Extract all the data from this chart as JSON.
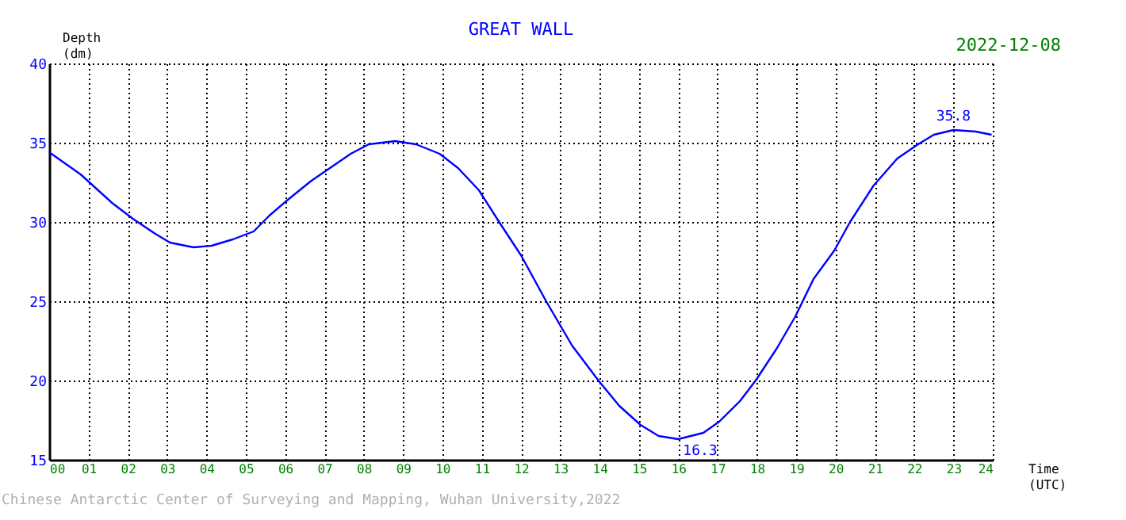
{
  "chart_data": {
    "type": "line",
    "title": "GREAT WALL",
    "ylabel": "Depth (dm)",
    "xlabel": "Time (UTC)",
    "annotations": [
      "2022-12-08",
      "Chinese Antarctic Center of Surveying and Mapping, Wuhan University,2022",
      {
        "text": "35.8",
        "x": 23.0,
        "y": 35.8
      },
      {
        "text": "16.3",
        "x": 16.0,
        "y": 16.3
      }
    ],
    "x": [
      0,
      0.8,
      1.6,
      2.13,
      2.67,
      3.07,
      3.67,
      4.13,
      4.67,
      5.2,
      5.6,
      6.07,
      6.67,
      7.2,
      7.67,
      8.13,
      8.8,
      9.33,
      9.93,
      10.4,
      10.93,
      11.47,
      12.0,
      12.64,
      13.3,
      13.97,
      14.5,
      15.04,
      15.5,
      16.0,
      16.64,
      17.04,
      17.57,
      17.97,
      18.5,
      18.97,
      19.44,
      19.97,
      20.37,
      20.97,
      21.57,
      22.1,
      22.5,
      23.0,
      23.57,
      23.97
    ],
    "series": [
      {
        "color": "#0000ff",
        "values": [
          34.4,
          33.0,
          31.2,
          30.2,
          29.3,
          28.7,
          28.4,
          28.5,
          28.9,
          29.4,
          30.4,
          31.4,
          32.6,
          33.5,
          34.3,
          34.9,
          35.1,
          34.9,
          34.3,
          33.4,
          32.0,
          29.9,
          27.9,
          25.0,
          22.2,
          20.0,
          18.4,
          17.2,
          16.5,
          16.3,
          16.7,
          17.4,
          18.7,
          20.0,
          22.0,
          24.0,
          26.4,
          28.2,
          30.0,
          32.3,
          34.0,
          34.9,
          35.5,
          35.8,
          35.7,
          35.5
        ]
      }
    ],
    "xlim": [
      0,
      24
    ],
    "xticks": [
      {
        "value": 0,
        "label": "00"
      },
      {
        "value": 1,
        "label": "01"
      },
      {
        "value": 2,
        "label": "02"
      },
      {
        "value": 3,
        "label": "03"
      },
      {
        "value": 4,
        "label": "04"
      },
      {
        "value": 5,
        "label": "05"
      },
      {
        "value": 6,
        "label": "06"
      },
      {
        "value": 7,
        "label": "07"
      },
      {
        "value": 8,
        "label": "08"
      },
      {
        "value": 9,
        "label": "09"
      },
      {
        "value": 10,
        "label": "10"
      },
      {
        "value": 11,
        "label": "11"
      },
      {
        "value": 12,
        "label": "12"
      },
      {
        "value": 13,
        "label": "13"
      },
      {
        "value": 14,
        "label": "14"
      },
      {
        "value": 15,
        "label": "15"
      },
      {
        "value": 16,
        "label": "16"
      },
      {
        "value": 17,
        "label": "17"
      },
      {
        "value": 18,
        "label": "18"
      },
      {
        "value": 19,
        "label": "19"
      },
      {
        "value": 20,
        "label": "20"
      },
      {
        "value": 21,
        "label": "21"
      },
      {
        "value": 22,
        "label": "22"
      },
      {
        "value": 23,
        "label": "23"
      },
      {
        "value": 24,
        "label": "24"
      }
    ],
    "ylim": [
      15,
      40
    ],
    "yticks": [
      15,
      20,
      25,
      30,
      35,
      40
    ],
    "grid": true
  }
}
